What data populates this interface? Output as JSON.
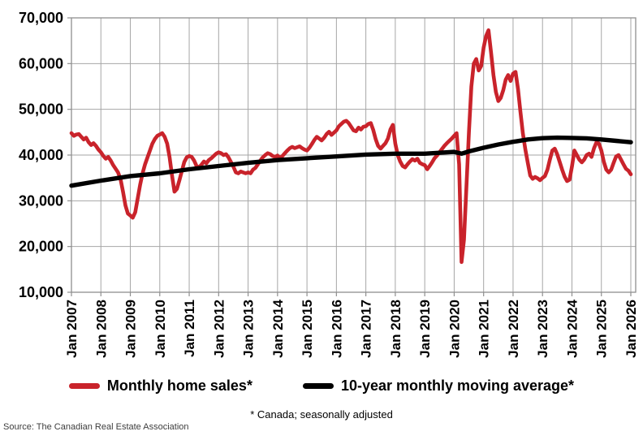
{
  "chart_data": {
    "type": "line",
    "x_start": "Jan 2007",
    "x_end": "Jan 2026",
    "x_interval": "month",
    "x_tick_labels": [
      "Jan 2007",
      "Jan 2008",
      "Jan 2009",
      "Jan 2010",
      "Jan 2011",
      "Jan 2012",
      "Jan 2013",
      "Jan 2014",
      "Jan 2015",
      "Jan 2016",
      "Jan 2017",
      "Jan 2018",
      "Jan 2019",
      "Jan 2020",
      "Jan 2021",
      "Jan 2022",
      "Jan 2023",
      "Jan 2024",
      "Jan 2025",
      "Jan 2026"
    ],
    "y_ticks": [
      10000,
      20000,
      30000,
      40000,
      50000,
      60000,
      70000
    ],
    "y_tick_labels": [
      "10,000",
      "20,000",
      "30,000",
      "40,000",
      "50,000",
      "60,000",
      "70,000"
    ],
    "ylim": [
      10000,
      70000
    ],
    "grid": true,
    "grid_color": "#a6a6a6",
    "border_color": "#8f8f8f",
    "legend_position": "bottom",
    "footnote": "* Canada; seasonally adjusted",
    "source": "Source: The Canadian Real Estate Association",
    "series": [
      {
        "id": "monthly-home-sales",
        "name": "Monthly home sales*",
        "color": "#c9232b",
        "stroke_width": 4.6,
        "values": [
          44800,
          44200,
          44500,
          44600,
          44000,
          43400,
          43800,
          42800,
          42200,
          42600,
          42000,
          41200,
          40600,
          39800,
          39200,
          39600,
          38800,
          37800,
          37000,
          36200,
          34800,
          32000,
          29000,
          27200,
          26800,
          26300,
          27500,
          30500,
          33500,
          36000,
          38000,
          39500,
          41000,
          42500,
          43500,
          44200,
          44500,
          44800,
          44000,
          42500,
          39500,
          35500,
          32000,
          32600,
          34500,
          36500,
          38500,
          39500,
          39800,
          39600,
          38800,
          37600,
          37300,
          37900,
          38600,
          38200,
          38900,
          39300,
          39800,
          40300,
          40600,
          40400,
          40000,
          40200,
          39500,
          38500,
          37500,
          36200,
          36000,
          36400,
          36200,
          36000,
          36200,
          36000,
          36800,
          37200,
          38000,
          38800,
          39500,
          40000,
          40400,
          40200,
          39800,
          39600,
          39900,
          39400,
          39800,
          40400,
          41000,
          41500,
          41800,
          41500,
          41700,
          41900,
          41500,
          41200,
          41000,
          41600,
          42400,
          43300,
          44000,
          43600,
          43200,
          43800,
          44600,
          45100,
          44400,
          44900,
          45400,
          46300,
          46800,
          47300,
          47500,
          47000,
          46200,
          45400,
          45200,
          46000,
          45600,
          46200,
          46300,
          46800,
          47000,
          45500,
          43500,
          42000,
          41400,
          42000,
          42600,
          43600,
          45600,
          46600,
          42500,
          40000,
          38600,
          37600,
          37300,
          38000,
          38600,
          39100,
          38800,
          39200,
          38300,
          38000,
          37800,
          36900,
          37600,
          38400,
          39300,
          39900,
          40600,
          41300,
          42000,
          42600,
          43100,
          43600,
          44200,
          44800,
          38000,
          16600,
          21500,
          33000,
          45000,
          55000,
          60000,
          61000,
          58500,
          59500,
          63500,
          66000,
          67300,
          62500,
          57500,
          53800,
          51800,
          52500,
          54200,
          56500,
          57500,
          56200,
          57800,
          58200,
          54500,
          49500,
          44800,
          41200,
          38300,
          35500,
          34800,
          35200,
          34900,
          34500,
          35000,
          35400,
          36800,
          39000,
          41000,
          41400,
          40200,
          38500,
          36800,
          35300,
          34300,
          34600,
          37500,
          41000,
          40000,
          39000,
          38400,
          39000,
          40000,
          40300,
          39600,
          41500,
          42800,
          42500,
          41000,
          38500,
          36800,
          36200,
          36800,
          38300,
          39700,
          40000,
          39000,
          38000,
          37000,
          36600,
          35800
        ]
      },
      {
        "id": "ten-year-moving-average",
        "name": "10-year monthly moving average*",
        "color": "#000000",
        "stroke_width": 5.4,
        "points": [
          [
            0,
            33300
          ],
          [
            12,
            34400
          ],
          [
            24,
            35400
          ],
          [
            36,
            36000
          ],
          [
            48,
            36900
          ],
          [
            60,
            37600
          ],
          [
            72,
            38300
          ],
          [
            84,
            38900
          ],
          [
            96,
            39300
          ],
          [
            108,
            39700
          ],
          [
            120,
            40100
          ],
          [
            132,
            40300
          ],
          [
            144,
            40300
          ],
          [
            150,
            40500
          ],
          [
            156,
            40700
          ],
          [
            159,
            40300
          ],
          [
            162,
            40800
          ],
          [
            168,
            41600
          ],
          [
            174,
            42300
          ],
          [
            180,
            42900
          ],
          [
            186,
            43400
          ],
          [
            192,
            43700
          ],
          [
            198,
            43800
          ],
          [
            204,
            43750
          ],
          [
            210,
            43650
          ],
          [
            216,
            43400
          ],
          [
            222,
            43100
          ],
          [
            228,
            42800
          ]
        ]
      }
    ]
  }
}
